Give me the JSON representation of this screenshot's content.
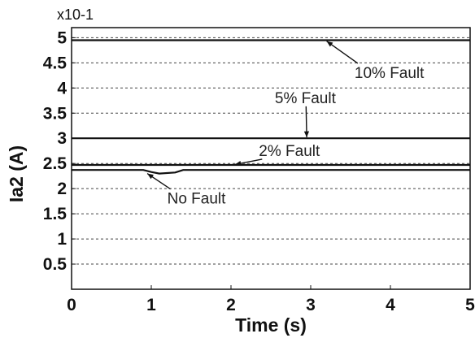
{
  "chart_data": {
    "type": "line",
    "xlabel": "Time (s)",
    "ylabel": "Ia2 (A)",
    "y_multiplier": "x10-1",
    "xlim": [
      0,
      5
    ],
    "ylim": [
      0,
      5.2
    ],
    "xticks": [
      "0",
      "1",
      "2",
      "3",
      "4",
      "5"
    ],
    "yticks": [
      "0.5",
      "1",
      "1.5",
      "2",
      "2.5",
      "3",
      "3.5",
      "4",
      "4.5",
      "5"
    ],
    "grid": "horizontal-dashed",
    "series": [
      {
        "name": "10% Fault",
        "x": [
          0,
          5
        ],
        "y": [
          4.95,
          4.95
        ]
      },
      {
        "name": "5% Fault",
        "x": [
          0,
          5
        ],
        "y": [
          3.0,
          3.0
        ]
      },
      {
        "name": "2% Fault",
        "x": [
          0,
          5
        ],
        "y": [
          2.47,
          2.47
        ]
      },
      {
        "name": "No Fault",
        "x": [
          0,
          0.9,
          1.0,
          1.1,
          1.3,
          1.4,
          5
        ],
        "y": [
          2.37,
          2.37,
          2.33,
          2.3,
          2.32,
          2.37,
          2.37
        ]
      }
    ],
    "annotations": [
      {
        "text": "10% Fault",
        "x": 3.55,
        "y": 4.2,
        "target_x": 3.2,
        "target_y": 4.93
      },
      {
        "text": "5% Fault",
        "x": 2.55,
        "y": 3.7,
        "target_x": 2.95,
        "target_y": 3.02
      },
      {
        "text": "2% Fault",
        "x": 2.35,
        "y": 2.65,
        "target_x": 2.05,
        "target_y": 2.48
      },
      {
        "text": "No Fault",
        "x": 1.2,
        "y": 1.7,
        "target_x": 0.95,
        "target_y": 2.3
      }
    ]
  }
}
